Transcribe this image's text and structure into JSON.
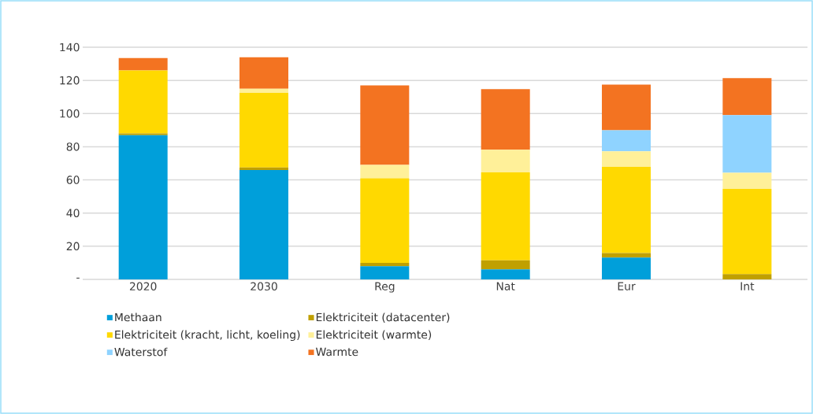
{
  "chart_data": {
    "type": "bar",
    "stacked": true,
    "categories": [
      "2020",
      "2030",
      "Reg",
      "Nat",
      "Eur",
      "Int"
    ],
    "series": [
      {
        "name": "Methaan",
        "color": "#009fda",
        "values": [
          87,
          66,
          8,
          6,
          13.2,
          0
        ]
      },
      {
        "name": "Elektriciteit (datacenter)",
        "color": "#c0a000",
        "values": [
          1,
          1.5,
          2,
          5.5,
          2.7,
          3.2
        ]
      },
      {
        "name": "Elektriciteit (kracht, licht, koeling)",
        "color": "#ffd900",
        "values": [
          38,
          45,
          51,
          53,
          52,
          51.4
        ]
      },
      {
        "name": "Elektriciteit (warmte)",
        "color": "#fff099",
        "values": [
          0,
          2.5,
          8,
          13.7,
          9.3,
          9.7
        ]
      },
      {
        "name": "Waterstof",
        "color": "#8fd3ff",
        "values": [
          0,
          0,
          0,
          0,
          12.7,
          34.8
        ]
      },
      {
        "name": "Warmte",
        "color": "#f37321",
        "values": [
          7.5,
          19,
          48,
          36.5,
          27.5,
          22.3
        ]
      }
    ],
    "ylim": [
      0,
      140
    ],
    "yticks": [
      {
        "value": 0,
        "label": "-"
      },
      20,
      40,
      60,
      80,
      100,
      120,
      140
    ],
    "grid": "y",
    "legend": "bottom"
  }
}
